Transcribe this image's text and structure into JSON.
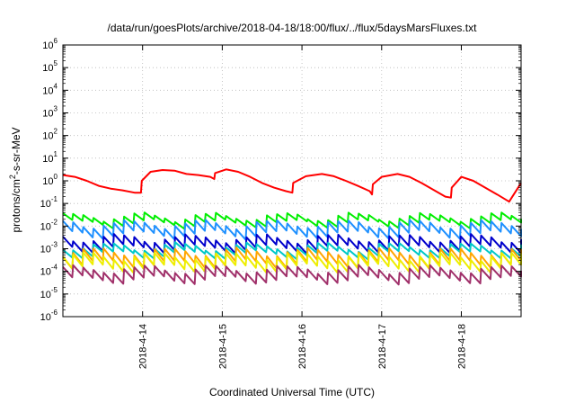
{
  "chart_data": {
    "type": "line",
    "title": "/data/run/goesPlots/archive/2018-04-18/18:00/flux/../flux/5daysMarsFluxes.txt",
    "xlabel": "Coordinated Universal Time (UTC)",
    "ylabel_main": "protons/cm",
    "ylabel_sup": "2",
    "ylabel_rest": "-s-sr-MeV",
    "y_scale": "log",
    "ylim": [
      1e-06,
      1000000.0
    ],
    "xlim": [
      "2018-04-13 00:00",
      "2018-04-18 18:00"
    ],
    "grid": true,
    "legend": "none",
    "y_ticks": [
      {
        "value": 1e-06,
        "base": "10",
        "exp": "-6"
      },
      {
        "value": 1e-05,
        "base": "10",
        "exp": "-5"
      },
      {
        "value": 0.0001,
        "base": "10",
        "exp": "-4"
      },
      {
        "value": 0.001,
        "base": "10",
        "exp": "-3"
      },
      {
        "value": 0.01,
        "base": "10",
        "exp": "-2"
      },
      {
        "value": 0.1,
        "base": "10",
        "exp": "-1"
      },
      {
        "value": 1,
        "base": "10",
        "exp": "0"
      },
      {
        "value": 10,
        "base": "10",
        "exp": "1"
      },
      {
        "value": 100,
        "base": "10",
        "exp": "2"
      },
      {
        "value": 1000,
        "base": "10",
        "exp": "3"
      },
      {
        "value": 10000,
        "base": "10",
        "exp": "4"
      },
      {
        "value": 100000,
        "base": "10",
        "exp": "5"
      },
      {
        "value": 1000000,
        "base": "10",
        "exp": "6"
      }
    ],
    "x_ticks": [
      "2018-4-14",
      "2018-4-15",
      "2018-4-16",
      "2018-4-17",
      "2018-4-18"
    ],
    "series": [
      {
        "color": "#ff0000",
        "x": [
          0.0,
          0.15,
          0.3,
          0.45,
          0.6,
          0.75,
          0.9,
          0.98,
          0.99,
          1.1,
          1.25,
          1.4,
          1.55,
          1.7,
          1.85,
          1.9,
          1.91,
          2.05,
          2.2,
          2.35,
          2.5,
          2.65,
          2.8,
          2.88,
          2.89,
          3.05,
          3.25,
          3.4,
          3.55,
          3.7,
          3.85,
          3.88,
          3.89,
          4.0,
          4.2,
          4.35,
          4.5,
          4.65,
          4.8,
          4.87,
          4.88,
          5.0,
          5.15,
          5.3,
          5.45,
          5.6,
          5.75
        ],
        "values": [
          1.8,
          1.5,
          1.0,
          0.6,
          0.45,
          0.38,
          0.3,
          0.3,
          1.0,
          2.5,
          3.0,
          2.8,
          2.0,
          1.8,
          1.5,
          1.2,
          2.2,
          3.2,
          2.5,
          1.5,
          0.8,
          0.5,
          0.35,
          0.3,
          0.8,
          1.6,
          2.0,
          1.6,
          1.0,
          0.6,
          0.35,
          0.25,
          0.7,
          1.5,
          2.0,
          1.5,
          0.8,
          0.4,
          0.2,
          0.18,
          0.5,
          1.5,
          1.0,
          0.5,
          0.25,
          0.12,
          0.8
        ]
      },
      {
        "color": "#00ee00",
        "base": 0.025,
        "dip": 0.5,
        "period": 0.128
      },
      {
        "color": "#1e90ff",
        "base": 0.012,
        "dip": 0.35,
        "period": 0.128
      },
      {
        "color": "#0000cc",
        "base": 0.0028,
        "dip": 0.35,
        "period": 0.128
      },
      {
        "color": "#00c8c8",
        "base": 0.0012,
        "dip": 0.45,
        "period": 0.128
      },
      {
        "color": "#ffa500",
        "base": 0.0007,
        "dip": 0.3,
        "period": 0.128
      },
      {
        "color": "#eeee00",
        "base": 0.00045,
        "dip": 0.3,
        "period": 0.128
      },
      {
        "color": "#a0306a",
        "base": 0.00012,
        "dip": 0.35,
        "period": 0.128
      }
    ]
  }
}
